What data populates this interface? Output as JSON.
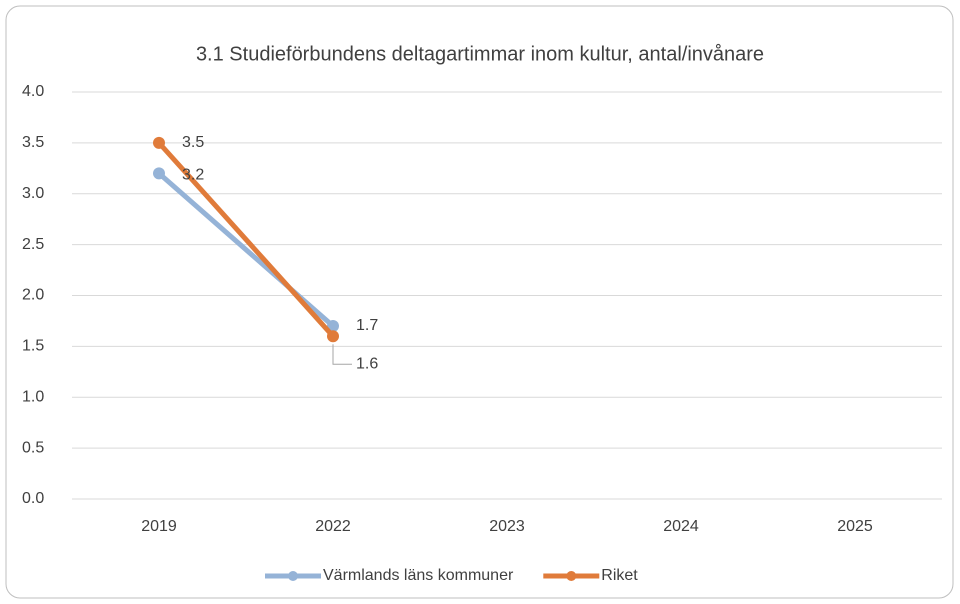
{
  "chart_data": {
    "type": "line",
    "title": "3.1 Studieförbundens  deltagartimmar inom kultur, antal/invånare",
    "categories": [
      "2019",
      "2022",
      "2023",
      "2024",
      "2025"
    ],
    "series": [
      {
        "name": "Värmlands läns kommuner",
        "color": "#95b3d7",
        "values": [
          3.2,
          1.7,
          null,
          null,
          null
        ]
      },
      {
        "name": "Riket",
        "color": "#e07b3a",
        "values": [
          3.5,
          1.6,
          null,
          null,
          null
        ]
      }
    ],
    "ylim": [
      0,
      4
    ],
    "yticks": [
      {
        "value": 0,
        "label": "0.0"
      },
      0.5,
      {
        "value": 1,
        "label": "1.0"
      },
      1.5,
      {
        "value": 2,
        "label": "2.0"
      },
      2.5,
      {
        "value": 3,
        "label": "3.0"
      },
      3.5,
      {
        "value": 4,
        "label": "4.0"
      }
    ],
    "grid": true,
    "legend": "bottom"
  }
}
